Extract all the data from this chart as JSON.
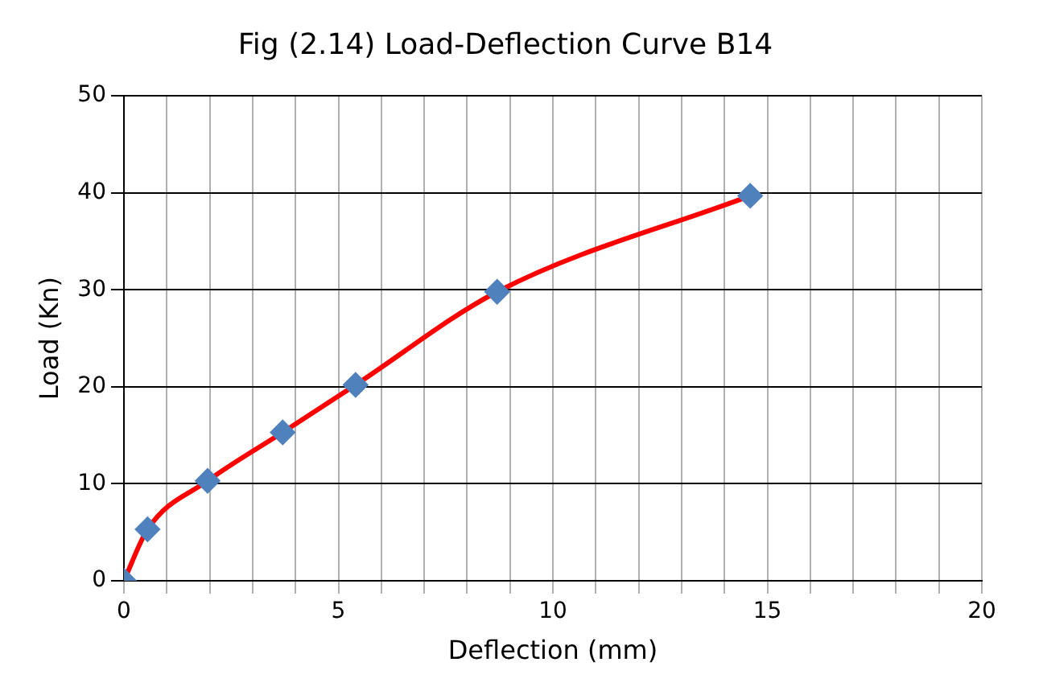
{
  "chart_data": {
    "type": "line",
    "title": "Fig (2.14) Load-Deflection Curve B14",
    "xlabel": "Deflection (mm)",
    "ylabel": "Load (Kn)",
    "x": [
      0,
      0.55,
      1.95,
      3.7,
      5.4,
      8.7,
      14.6
    ],
    "series": [
      {
        "color": "#ff0000",
        "values": [
          0,
          5.3,
          10.3,
          15.3,
          20.2,
          29.8,
          39.7
        ]
      }
    ],
    "xlim": [
      0,
      20
    ],
    "xticks": [
      0,
      {
        "value": 1,
        "label": null
      },
      {
        "value": 2,
        "label": null
      },
      {
        "value": 3,
        "label": null
      },
      {
        "value": 4,
        "label": null
      },
      5,
      {
        "value": 6,
        "label": null
      },
      {
        "value": 7,
        "label": null
      },
      {
        "value": 8,
        "label": null
      },
      {
        "value": 9,
        "label": null
      },
      10,
      {
        "value": 11,
        "label": null
      },
      {
        "value": 12,
        "label": null
      },
      {
        "value": 13,
        "label": null
      },
      {
        "value": 14,
        "label": null
      },
      15,
      {
        "value": 16,
        "label": null
      },
      {
        "value": 17,
        "label": null
      },
      {
        "value": 18,
        "label": null
      },
      {
        "value": 19,
        "label": null
      },
      20
    ],
    "ylim": [
      0,
      50
    ],
    "yticks": [
      0,
      10,
      20,
      30,
      40,
      50
    ],
    "grid": true,
    "marker": "diamond",
    "line_style": "solid",
    "legend": false
  }
}
